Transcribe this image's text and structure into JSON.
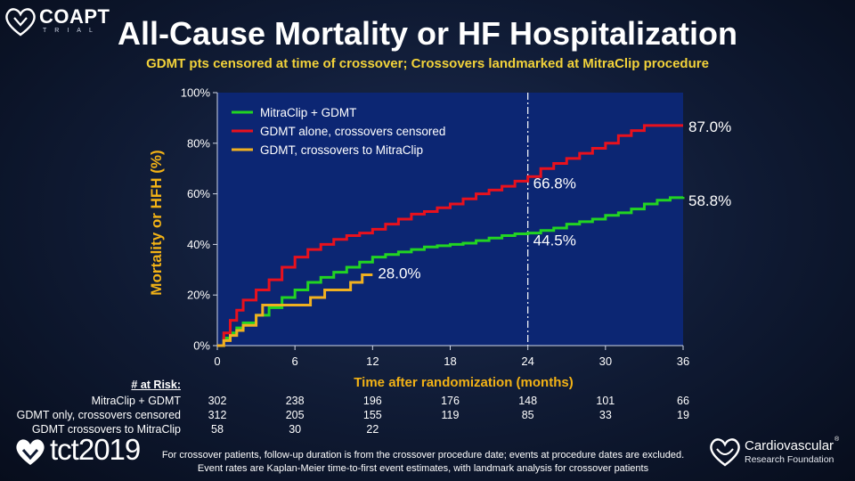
{
  "header": {
    "logo_text": "COAPT",
    "logo_subtext": "TRIAL",
    "title": "All-Cause Mortality or HF Hospitalization",
    "subtitle": "GDMT pts censored at time of crossover; Crossovers landmarked at MitraClip procedure"
  },
  "chart_data": {
    "type": "line",
    "xlabel": "Time after randomization (months)",
    "ylabel": "Mortality or HFH (%)",
    "xlim": [
      0,
      36
    ],
    "ylim": [
      0,
      100
    ],
    "x_ticks": [
      0,
      6,
      12,
      18,
      24,
      30,
      36
    ],
    "x_tick_labels": [
      "0",
      "6",
      "12",
      "18",
      "24",
      "30",
      "36"
    ],
    "y_ticks": [
      0,
      20,
      40,
      60,
      80,
      100
    ],
    "y_tick_labels": [
      "0%",
      "20%",
      "40%",
      "60%",
      "80%",
      "100%"
    ],
    "reference_line_x": 24,
    "legend_position": "top-left",
    "series": [
      {
        "name": "MitraClip + GDMT",
        "color": "#22d422",
        "points": [
          [
            0,
            0
          ],
          [
            0.5,
            3
          ],
          [
            1,
            5
          ],
          [
            1.5,
            7
          ],
          [
            2,
            9
          ],
          [
            3,
            12
          ],
          [
            4,
            15
          ],
          [
            5,
            19
          ],
          [
            6,
            22
          ],
          [
            7,
            25
          ],
          [
            8,
            27
          ],
          [
            9,
            29
          ],
          [
            10,
            31
          ],
          [
            11,
            33
          ],
          [
            12,
            35
          ],
          [
            13,
            36
          ],
          [
            14,
            37
          ],
          [
            15,
            38
          ],
          [
            16,
            39
          ],
          [
            17,
            39.5
          ],
          [
            18,
            40
          ],
          [
            19,
            40.5
          ],
          [
            20,
            41.5
          ],
          [
            21,
            42.5
          ],
          [
            22,
            43.5
          ],
          [
            23,
            44.2
          ],
          [
            24,
            44.5
          ],
          [
            25,
            45.5
          ],
          [
            26,
            46.5
          ],
          [
            27,
            48
          ],
          [
            28,
            49
          ],
          [
            29,
            50
          ],
          [
            30,
            51.5
          ],
          [
            31,
            52.5
          ],
          [
            32,
            54
          ],
          [
            33,
            56
          ],
          [
            34,
            57.5
          ],
          [
            35,
            58.5
          ],
          [
            36,
            58.8
          ]
        ],
        "end_label": "58.8%"
      },
      {
        "name": "GDMT alone, crossovers censored",
        "color": "#e8111d",
        "points": [
          [
            0,
            0
          ],
          [
            0.5,
            5
          ],
          [
            1,
            10
          ],
          [
            1.5,
            14
          ],
          [
            2,
            18
          ],
          [
            3,
            22
          ],
          [
            4,
            26
          ],
          [
            5,
            31
          ],
          [
            6,
            35
          ],
          [
            7,
            38
          ],
          [
            8,
            40
          ],
          [
            9,
            42
          ],
          [
            10,
            43.5
          ],
          [
            11,
            44.5
          ],
          [
            12,
            46
          ],
          [
            13,
            48
          ],
          [
            14,
            50
          ],
          [
            15,
            52
          ],
          [
            16,
            53
          ],
          [
            17,
            54.5
          ],
          [
            18,
            56
          ],
          [
            19,
            58
          ],
          [
            20,
            60
          ],
          [
            21,
            61.5
          ],
          [
            22,
            63
          ],
          [
            23,
            65
          ],
          [
            24,
            66.8
          ],
          [
            25,
            70
          ],
          [
            26,
            72
          ],
          [
            27,
            74
          ],
          [
            28,
            76
          ],
          [
            29,
            78
          ],
          [
            30,
            80
          ],
          [
            31,
            83
          ],
          [
            32,
            85
          ],
          [
            33,
            87
          ],
          [
            34,
            87
          ],
          [
            35,
            87
          ],
          [
            36,
            87
          ]
        ],
        "end_label": "87.0%"
      },
      {
        "name": "GDMT, crossovers to MitraClip",
        "color": "#f0b020",
        "points": [
          [
            0,
            0
          ],
          [
            0.5,
            2
          ],
          [
            1,
            4
          ],
          [
            1.5,
            6
          ],
          [
            2,
            8
          ],
          [
            3,
            12
          ],
          [
            3.5,
            16
          ],
          [
            4,
            16
          ],
          [
            5,
            16
          ],
          [
            6,
            16
          ],
          [
            7,
            16
          ],
          [
            7.2,
            19
          ],
          [
            8,
            19
          ],
          [
            8.3,
            22
          ],
          [
            9,
            22
          ],
          [
            10,
            22
          ],
          [
            10.3,
            25
          ],
          [
            11,
            25
          ],
          [
            11.2,
            28
          ],
          [
            12,
            28
          ]
        ],
        "end_label": "28.0%"
      }
    ],
    "annotations": [
      {
        "text": "66.8%",
        "x": 24,
        "y": 66.8
      },
      {
        "text": "44.5%",
        "x": 24,
        "y": 44.5
      },
      {
        "text": "87.0%",
        "x": 36,
        "y": 87.0
      },
      {
        "text": "58.8%",
        "x": 36,
        "y": 58.8
      },
      {
        "text": "28.0%",
        "x": 12,
        "y": 28.0
      }
    ]
  },
  "at_risk": {
    "header": "# at Risk:",
    "rows": [
      {
        "label": "MitraClip + GDMT",
        "values": [
          "302",
          "238",
          "196",
          "176",
          "148",
          "101",
          "66"
        ]
      },
      {
        "label": "GDMT only, crossovers censored",
        "values": [
          "312",
          "205",
          "155",
          "119",
          "85",
          "33",
          "19"
        ]
      },
      {
        "label": "GDMT crossovers to MitraClip",
        "values": [
          "58",
          "30",
          "22"
        ]
      }
    ]
  },
  "footer": {
    "tct_brand": "tct2019",
    "footnote_line1": "For crossover patients, follow-up duration is from the crossover procedure date; events at procedure dates are excluded.",
    "footnote_line2": "Event rates are Kaplan-Meier time-to-first event estimates, with landmark analysis for crossover patients",
    "crf_name": "Cardiovascular",
    "crf_sub": "Research Foundation",
    "crf_reg": "®"
  },
  "colors": {
    "plot_bg": "#0c2673",
    "axis_label": "#f2b216",
    "subtitle": "#f2d23a"
  }
}
